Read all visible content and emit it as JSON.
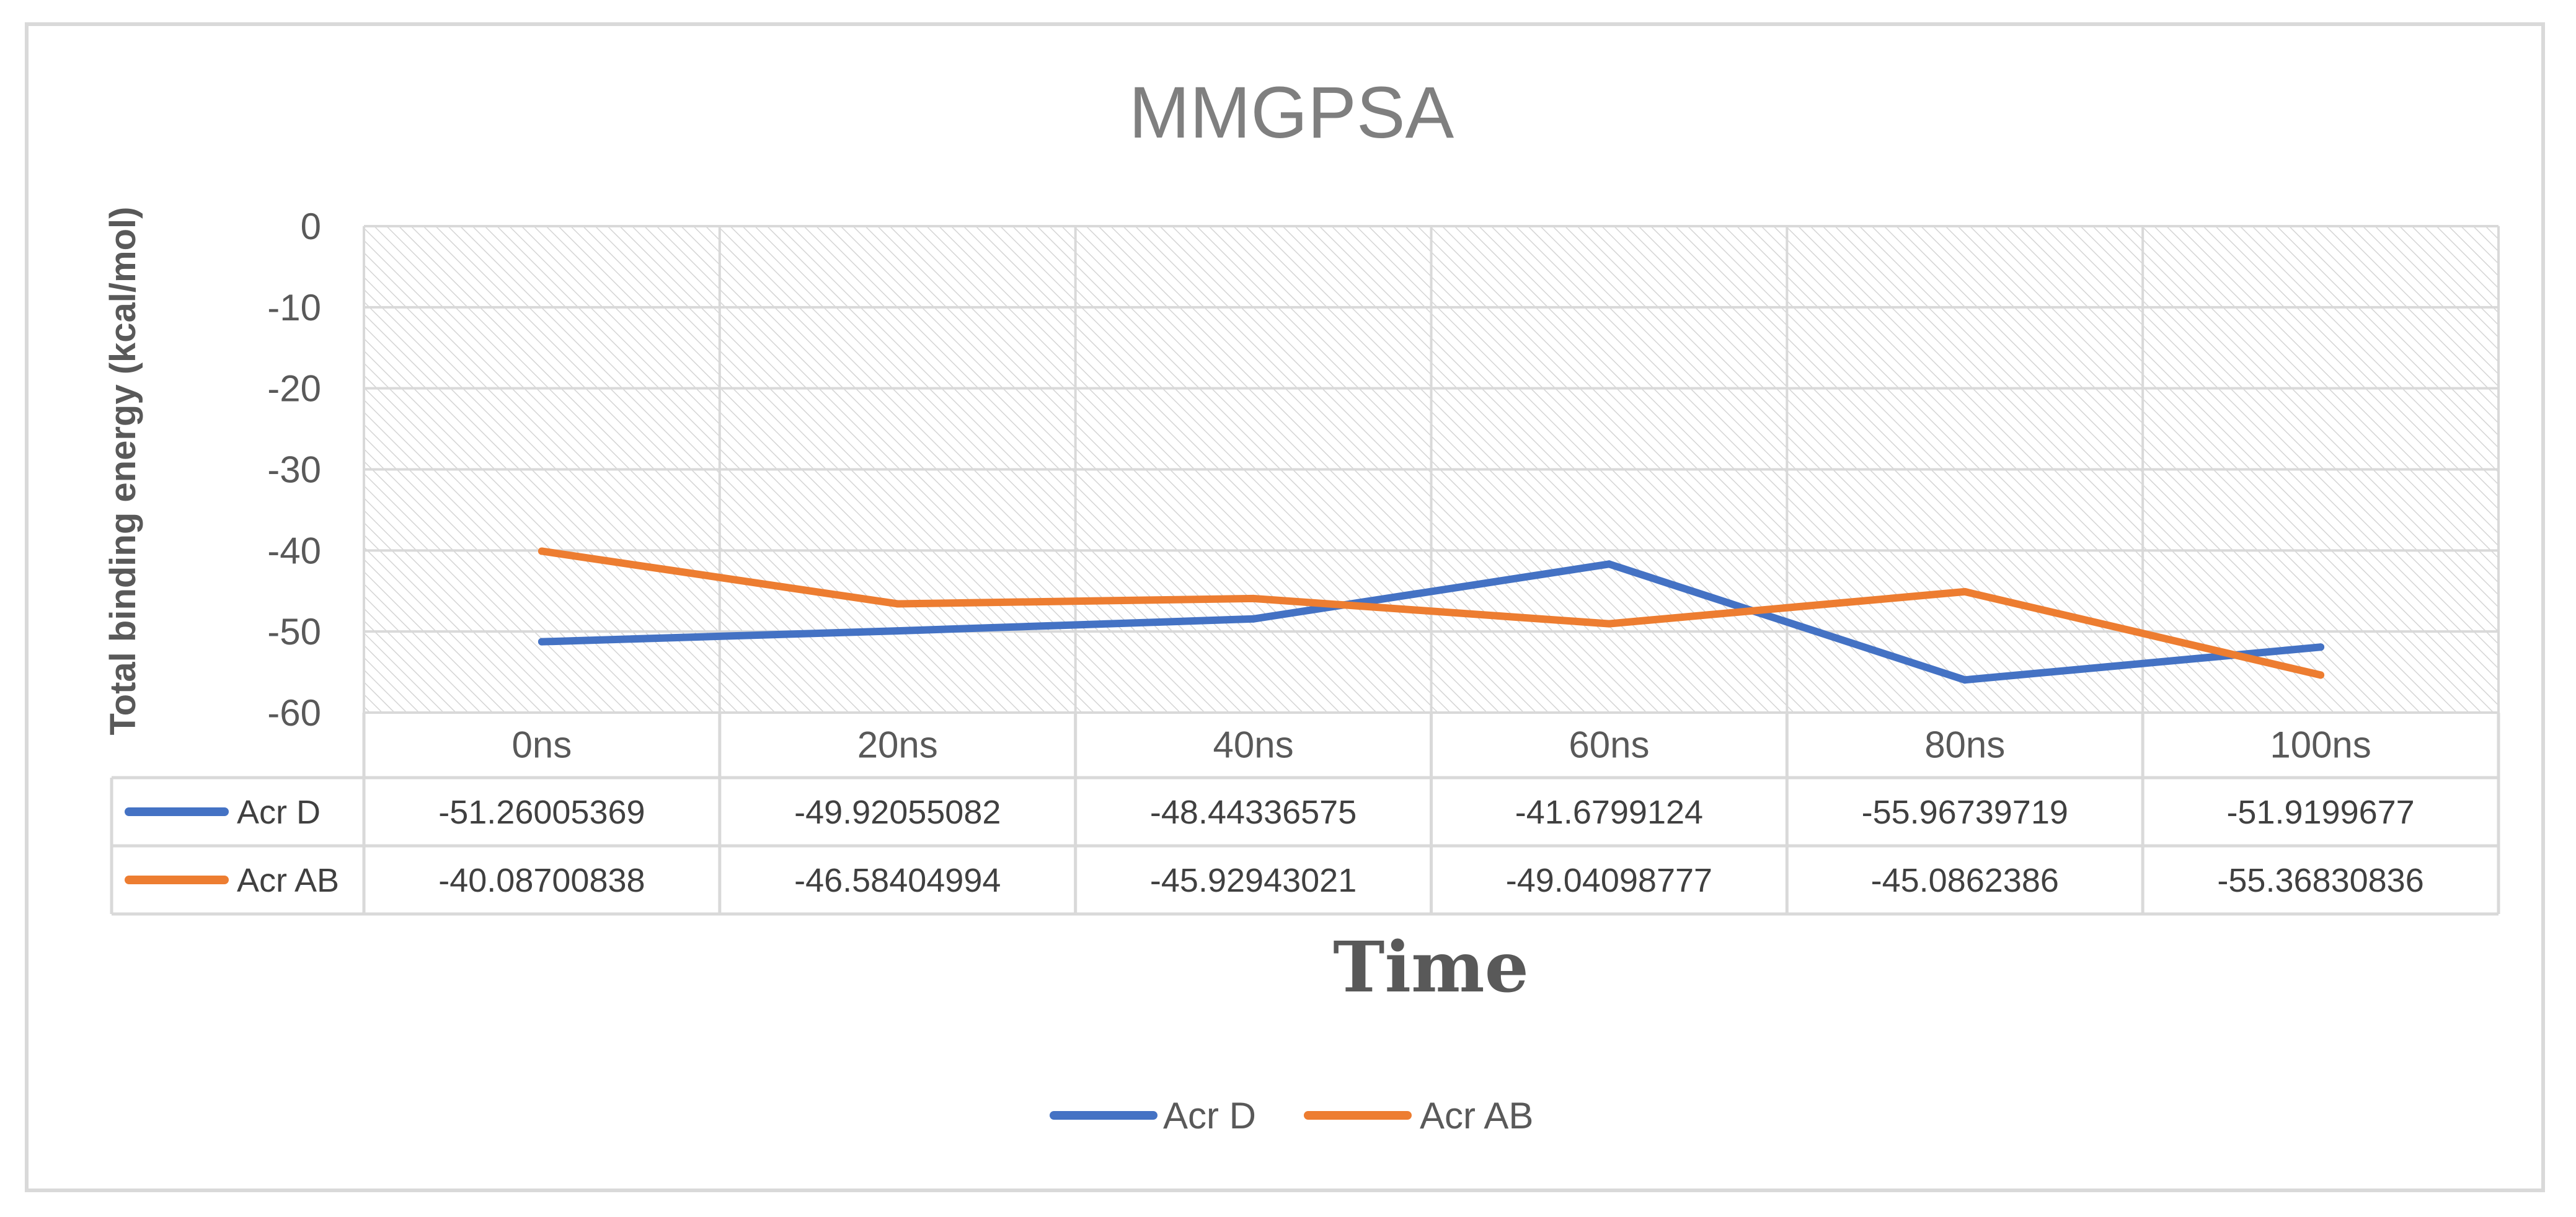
{
  "chart_data": {
    "type": "line",
    "title": "MMGPSA",
    "xlabel": "Time",
    "ylabel": "Total binding energy (kcal/mol)",
    "categories": [
      "0ns",
      "20ns",
      "40ns",
      "60ns",
      "80ns",
      "100ns"
    ],
    "ylim": [
      -60,
      0
    ],
    "yticks": [
      0,
      -10,
      -20,
      -30,
      -40,
      -50,
      -60
    ],
    "ytick_labels": [
      "0",
      "-10",
      "-20",
      "-30",
      "-40",
      "-50",
      "-60"
    ],
    "grid": true,
    "legend_position": "bottom",
    "series": [
      {
        "name": "Acr D",
        "color": "#4472c4",
        "values": [
          -51.26005369,
          -49.92055082,
          -48.44336575,
          -41.6799124,
          -55.96739719,
          -51.9199677
        ],
        "labels": [
          "-51.26005369",
          "-49.92055082",
          "-48.44336575",
          "-41.6799124",
          "-55.96739719",
          "-51.9199677"
        ]
      },
      {
        "name": "Acr AB",
        "color": "#ed7d31",
        "values": [
          -40.08700838,
          -46.58404994,
          -45.92943021,
          -49.04098777,
          -45.0862386,
          -55.36830836
        ],
        "labels": [
          "-40.08700838",
          "-46.58404994",
          "-45.92943021",
          "-49.04098777",
          "-45.0862386",
          "-55.36830836"
        ]
      }
    ]
  }
}
